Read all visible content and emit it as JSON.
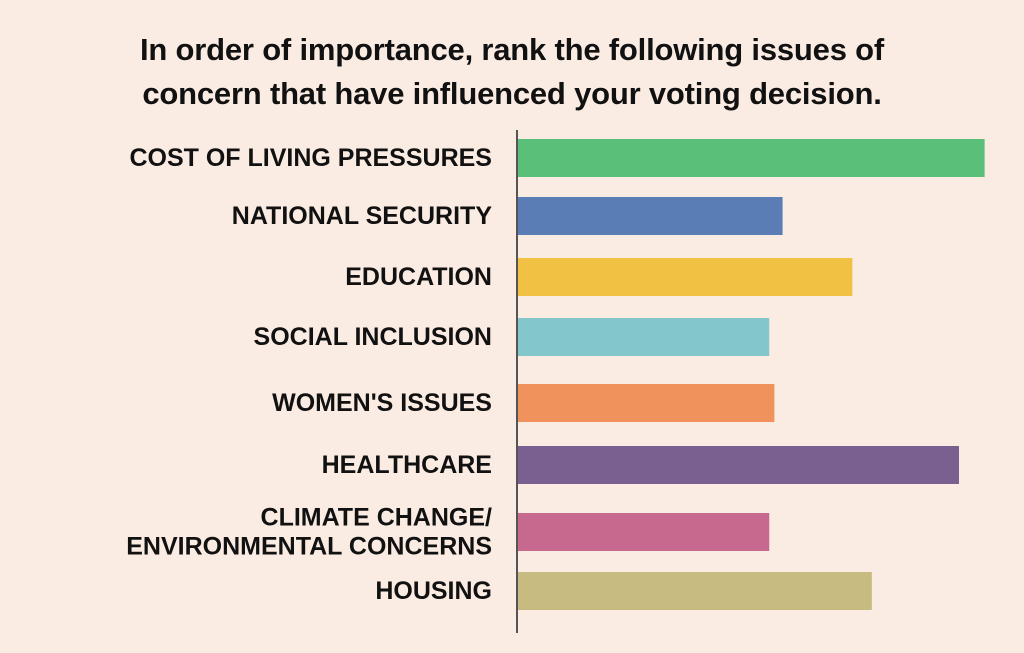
{
  "chart_data": {
    "type": "bar",
    "orientation": "horizontal",
    "title_lines": [
      "In order of importance, rank the following issues of",
      "concern that have influenced your voting decision."
    ],
    "categories": [
      [
        "COST OF LIVING PRESSURES"
      ],
      [
        "NATIONAL SECURITY"
      ],
      [
        "EDUCATION"
      ],
      [
        "SOCIAL INCLUSION"
      ],
      [
        "WOMEN'S ISSUES"
      ],
      [
        "HEALTHCARE"
      ],
      [
        "CLIMATE CHANGE/",
        "ENVIRONMENTAL CONCERNS"
      ],
      [
        "HOUSING"
      ]
    ],
    "values": [
      455,
      258,
      326,
      245,
      250,
      430,
      245,
      345
    ],
    "colors": [
      "#5abf79",
      "#5b7db5",
      "#f0c143",
      "#83c6cb",
      "#f0925c",
      "#7a5f91",
      "#c7688f",
      "#c7bb82"
    ],
    "xlim": [
      0,
      470
    ],
    "grid": false,
    "axis_line_color": "#555555"
  }
}
